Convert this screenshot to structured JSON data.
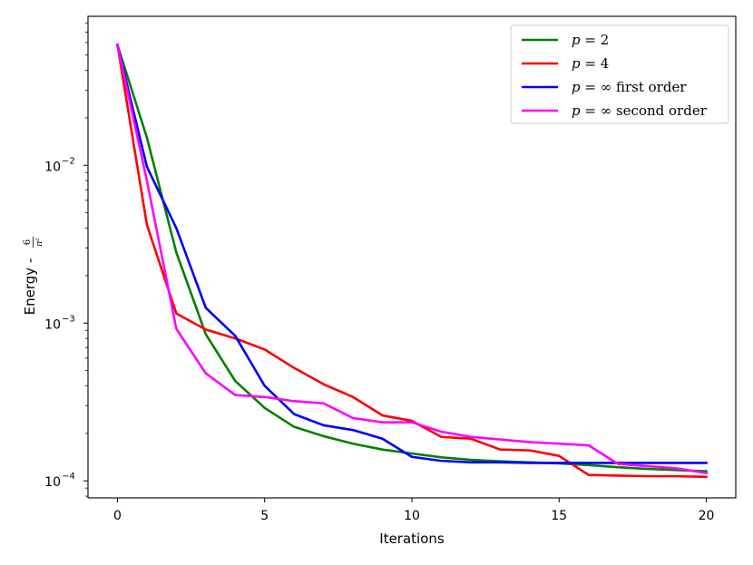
{
  "chart_data": {
    "type": "line",
    "xlabel": "Iterations",
    "ylabel": "Energy - 6/π²",
    "ylabel_prefix": "Energy - ",
    "ylabel_frac_num": "6",
    "ylabel_frac_den": "π²",
    "xscale": "linear",
    "yscale": "log",
    "xlim": [
      -1,
      21
    ],
    "ylim": [
      7.8e-05,
      0.088
    ],
    "x_ticks": [
      0,
      5,
      10,
      15,
      20
    ],
    "x_tick_labels": [
      "0",
      "5",
      "10",
      "15",
      "20"
    ],
    "y_major_ticks": [
      0.0001,
      0.001,
      0.01
    ],
    "y_tick_labels": [
      {
        "base": "10",
        "exp": "−4"
      },
      {
        "base": "10",
        "exp": "−3"
      },
      {
        "base": "10",
        "exp": "−2"
      }
    ],
    "grid": false,
    "legend_position": "top-right",
    "x": [
      0,
      1,
      2,
      3,
      4,
      5,
      6,
      7,
      8,
      9,
      10,
      11,
      12,
      13,
      14,
      15,
      16,
      17,
      18,
      19,
      20
    ],
    "series": [
      {
        "name": "p = 2",
        "name_italic": "p",
        "name_rest": " = 2",
        "color": "#008000",
        "values": [
          0.058,
          0.015,
          0.0028,
          0.00085,
          0.00043,
          0.00029,
          0.00022,
          0.000192,
          0.000172,
          0.000158,
          0.000149,
          0.000141,
          0.000136,
          0.000133,
          0.000131,
          0.000129,
          0.000126,
          0.000122,
          0.000119,
          0.000117,
          0.000115
        ]
      },
      {
        "name": "p = 4",
        "name_italic": "p",
        "name_rest": " = 4",
        "color": "#ff0000",
        "values": [
          0.058,
          0.0042,
          0.00115,
          0.00091,
          0.0008,
          0.00068,
          0.00052,
          0.00041,
          0.00034,
          0.00026,
          0.00024,
          0.00019,
          0.000185,
          0.000158,
          0.000156,
          0.000144,
          0.000109,
          0.000108,
          0.000107,
          0.000107,
          0.000106
        ]
      },
      {
        "name": "p = ∞ first order",
        "name_italic": "p",
        "name_rest": " = ∞ first order",
        "color": "#0000ff",
        "values": [
          0.058,
          0.0098,
          0.004,
          0.00125,
          0.00083,
          0.0004,
          0.000265,
          0.000225,
          0.00021,
          0.000185,
          0.000142,
          0.000134,
          0.000131,
          0.000131,
          0.00013,
          0.00013,
          0.00013,
          0.00013,
          0.00013,
          0.00013,
          0.00013
        ]
      },
      {
        "name": "p = ∞ second order",
        "name_italic": "p",
        "name_rest": " = ∞ second order",
        "color": "#ff00ff",
        "values": [
          0.058,
          0.008,
          0.00092,
          0.00048,
          0.00035,
          0.00034,
          0.00032,
          0.00031,
          0.00025,
          0.000235,
          0.000235,
          0.000205,
          0.00019,
          0.000183,
          0.000176,
          0.000172,
          0.000168,
          0.000128,
          0.000124,
          0.00012,
          0.000112
        ]
      }
    ]
  }
}
